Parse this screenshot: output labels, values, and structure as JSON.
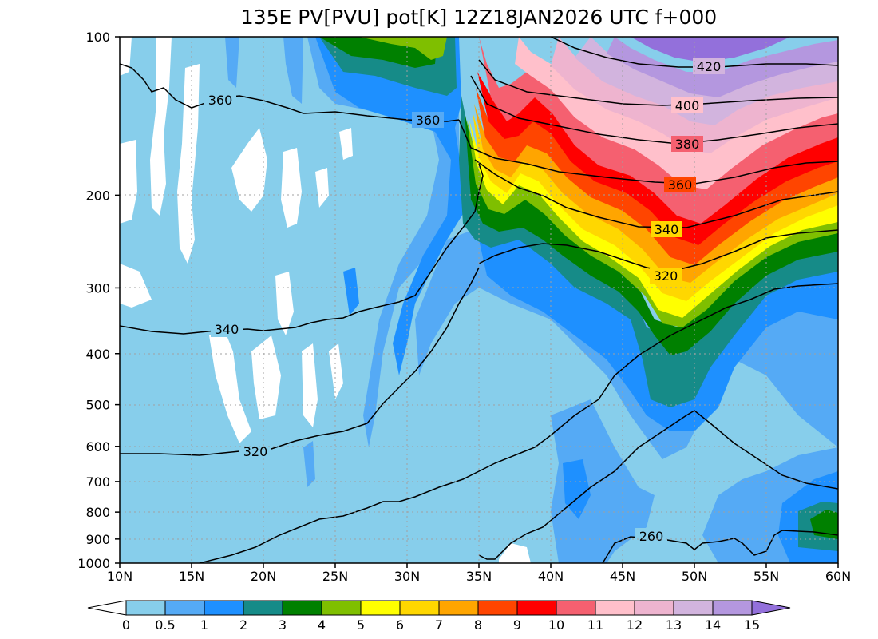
{
  "chart_data": {
    "type": "heatmap",
    "title": "135E PV[PVU] pot[K] 12Z18JAN2026 UTC f+000",
    "x_ticks": [
      "10N",
      "15N",
      "20N",
      "25N",
      "30N",
      "35N",
      "40N",
      "45N",
      "50N",
      "55N",
      "60N"
    ],
    "y_ticks": [
      "100",
      "200",
      "300",
      "400",
      "500",
      "600",
      "700",
      "800",
      "900",
      "1000"
    ],
    "xlim": [
      10,
      60
    ],
    "ylim": [
      1000,
      100
    ],
    "y_scale": "log",
    "grid": true,
    "colorbar": {
      "labels": [
        "0",
        "0.5",
        "1",
        "2",
        "3",
        "4",
        "5",
        "6",
        "7",
        "8",
        "9",
        "10",
        "11",
        "12",
        "13",
        "14",
        "15"
      ],
      "colors": [
        "#87CEEB",
        "#55AAF5",
        "#1E90FF",
        "#168B88",
        "#008000",
        "#7FBF00",
        "#FFFF00",
        "#FFD700",
        "#FFA500",
        "#FF4500",
        "#FF0000",
        "#F56070",
        "#FFC0CB",
        "#EEB4CF",
        "#D2B4DE",
        "#B497DF"
      ],
      "under_color": "#FFFFFF",
      "over_color": "#9370DB"
    },
    "contour_labels": [
      "420",
      "400",
      "380",
      "360",
      "360",
      "360",
      "340",
      "340",
      "320",
      "320",
      "260"
    ]
  }
}
